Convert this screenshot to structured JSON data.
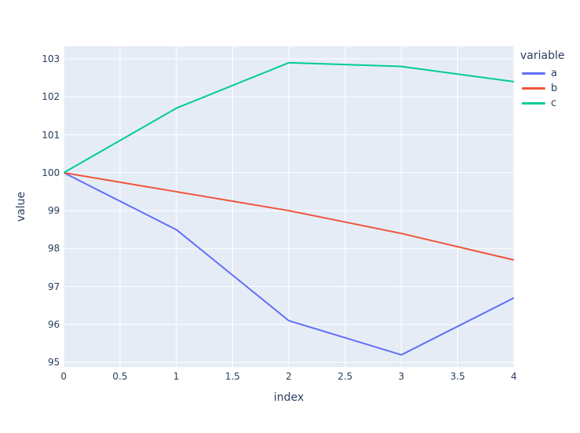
{
  "chart_data": {
    "type": "line",
    "title": "",
    "xlabel": "index",
    "ylabel": "value",
    "legend_title": "variable",
    "x": [
      0,
      1,
      2,
      3,
      4
    ],
    "series": [
      {
        "name": "a",
        "color": "#636efa",
        "values": [
          100,
          98.5,
          96.1,
          95.2,
          96.7
        ]
      },
      {
        "name": "b",
        "color": "#ef553b",
        "values": [
          100,
          99.5,
          99.0,
          98.4,
          97.7
        ]
      },
      {
        "name": "c",
        "color": "#00cc96",
        "values": [
          100,
          101.7,
          102.9,
          102.8,
          102.4
        ]
      }
    ],
    "xlim": [
      0,
      4
    ],
    "ylim": [
      94.88,
      103.33
    ],
    "xticks": [
      0,
      0.5,
      1,
      1.5,
      2,
      2.5,
      3,
      3.5,
      4
    ],
    "xtick_labels": [
      "0",
      "0.5",
      "1",
      "1.5",
      "2",
      "2.5",
      "3",
      "3.5",
      "4"
    ],
    "yticks": [
      95,
      96,
      97,
      98,
      99,
      100,
      101,
      102,
      103
    ],
    "ytick_labels": [
      "95",
      "96",
      "97",
      "98",
      "99",
      "100",
      "101",
      "102",
      "103"
    ],
    "grid": true,
    "legend_position": "right",
    "colors": {
      "paper_bg": "#ffffff",
      "plot_bg": "#e5ecf6",
      "grid": "#ffffff",
      "text": "#2a3f5f"
    }
  }
}
